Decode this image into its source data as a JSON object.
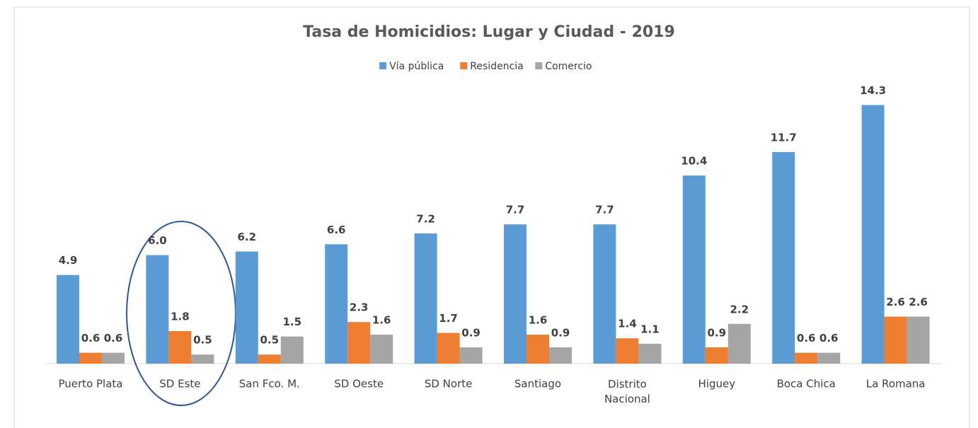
{
  "chart_data": {
    "type": "bar",
    "title": "Tasa de Homicidios: Lugar y Ciudad - 2019",
    "categories": [
      "Puerto Plata",
      "SD Este",
      "San Fco. M.",
      "SD Oeste",
      "SD Norte",
      "Santiago",
      "Distrito Nacional",
      "Higuey",
      "Boca Chica",
      "La Romana"
    ],
    "series": [
      {
        "name": "Vía pública",
        "color": "#5b9bd5",
        "values": [
          4.9,
          6,
          6.2,
          6.6,
          7.2,
          7.7,
          7.7,
          10.4,
          11.7,
          14.3
        ],
        "value_labels": [
          "4.9",
          "6.0",
          "6.2",
          "6.6",
          "7.2",
          "7.7",
          "7.7",
          "10.4",
          "11.7",
          "14.3"
        ]
      },
      {
        "name": "Residencia",
        "color": "#ed7d31",
        "values": [
          0.6,
          1.8,
          0.5,
          2.3,
          1.7,
          1.6,
          1.4,
          0.9,
          0.6,
          2.6
        ],
        "value_labels": [
          "0.6",
          "1.8",
          "0.5",
          "2.3",
          "1.7",
          "1.6",
          "1.4",
          "0.9",
          "0.6",
          "2.6"
        ]
      },
      {
        "name": "Comercio",
        "color": "#a5a5a5",
        "values": [
          0.6,
          0.5,
          1.5,
          1.6,
          0.9,
          0.9,
          1.1,
          2.2,
          0.6,
          2.6
        ],
        "value_labels": [
          "0.6",
          "0.5",
          "1.5",
          "1.6",
          "0.9",
          "0.9",
          "1.1",
          "2.2",
          "0.6",
          "2.6"
        ]
      }
    ],
    "ylim": [
      0,
      16
    ],
    "legend": "top"
  }
}
